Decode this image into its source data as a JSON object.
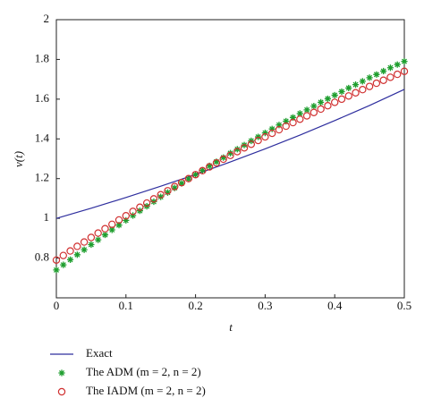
{
  "chart_data": {
    "type": "line",
    "xlabel": "t",
    "ylabel": "v(t)",
    "xlim": [
      0,
      0.5
    ],
    "ylim": [
      0.6,
      2
    ],
    "xticks": [
      0,
      0.1,
      0.2,
      0.3,
      0.4,
      0.5
    ],
    "yticks": [
      0.8,
      1,
      1.2,
      1.4,
      1.6,
      1.8,
      2
    ],
    "grid": false,
    "legend": "bottom",
    "series": [
      {
        "name": "Exact",
        "color": "#2e2e9e",
        "marker": "none",
        "x": [
          0,
          0.05,
          0.1,
          0.15,
          0.2,
          0.25,
          0.3,
          0.35,
          0.4,
          0.45,
          0.5
        ],
        "values": [
          1,
          1.051,
          1.105,
          1.162,
          1.221,
          1.284,
          1.35,
          1.419,
          1.492,
          1.568,
          1.649
        ]
      },
      {
        "name": "The ADM (m = 2, n = 2)",
        "color": "#1e9e2e",
        "marker": "star",
        "x": [
          0,
          0.01,
          0.02,
          0.03,
          0.04,
          0.05,
          0.06,
          0.07,
          0.08,
          0.09,
          0.1,
          0.11,
          0.12,
          0.13,
          0.14,
          0.15,
          0.16,
          0.17,
          0.18,
          0.19,
          0.2,
          0.21,
          0.22,
          0.23,
          0.24,
          0.25,
          0.26,
          0.27,
          0.28,
          0.29,
          0.3,
          0.31,
          0.32,
          0.33,
          0.34,
          0.35,
          0.36,
          0.37,
          0.38,
          0.39,
          0.4,
          0.41,
          0.42,
          0.43,
          0.44,
          0.45,
          0.46,
          0.47,
          0.48,
          0.49,
          0.5
        ],
        "values": [
          0.74,
          0.766,
          0.792,
          0.817,
          0.842,
          0.868,
          0.892,
          0.917,
          0.942,
          0.966,
          0.99,
          1.014,
          1.038,
          1.061,
          1.084,
          1.108,
          1.13,
          1.153,
          1.176,
          1.198,
          1.22,
          1.242,
          1.264,
          1.285,
          1.306,
          1.328,
          1.348,
          1.369,
          1.39,
          1.41,
          1.43,
          1.45,
          1.47,
          1.489,
          1.508,
          1.528,
          1.546,
          1.565,
          1.584,
          1.602,
          1.62,
          1.638,
          1.656,
          1.673,
          1.69,
          1.708,
          1.724,
          1.741,
          1.758,
          1.774,
          1.79
        ]
      },
      {
        "name": "The IADM (m = 2, n = 2)",
        "color": "#d03030",
        "marker": "circle",
        "x": [
          0,
          0.01,
          0.02,
          0.03,
          0.04,
          0.05,
          0.06,
          0.07,
          0.08,
          0.09,
          0.1,
          0.11,
          0.12,
          0.13,
          0.14,
          0.15,
          0.16,
          0.17,
          0.18,
          0.19,
          0.2,
          0.21,
          0.22,
          0.23,
          0.24,
          0.25,
          0.26,
          0.27,
          0.28,
          0.29,
          0.3,
          0.31,
          0.32,
          0.33,
          0.34,
          0.35,
          0.36,
          0.37,
          0.38,
          0.39,
          0.4,
          0.41,
          0.42,
          0.43,
          0.44,
          0.45,
          0.46,
          0.47,
          0.48,
          0.49,
          0.5
        ],
        "values": [
          0.79,
          0.813,
          0.836,
          0.859,
          0.881,
          0.904,
          0.926,
          0.948,
          0.97,
          0.992,
          1.013,
          1.035,
          1.056,
          1.077,
          1.098,
          1.119,
          1.139,
          1.16,
          1.18,
          1.2,
          1.22,
          1.24,
          1.259,
          1.279,
          1.298,
          1.317,
          1.336,
          1.355,
          1.373,
          1.392,
          1.41,
          1.428,
          1.446,
          1.464,
          1.482,
          1.499,
          1.516,
          1.533,
          1.55,
          1.567,
          1.584,
          1.6,
          1.616,
          1.632,
          1.648,
          1.664,
          1.68,
          1.695,
          1.71,
          1.725,
          1.74
        ]
      }
    ]
  }
}
